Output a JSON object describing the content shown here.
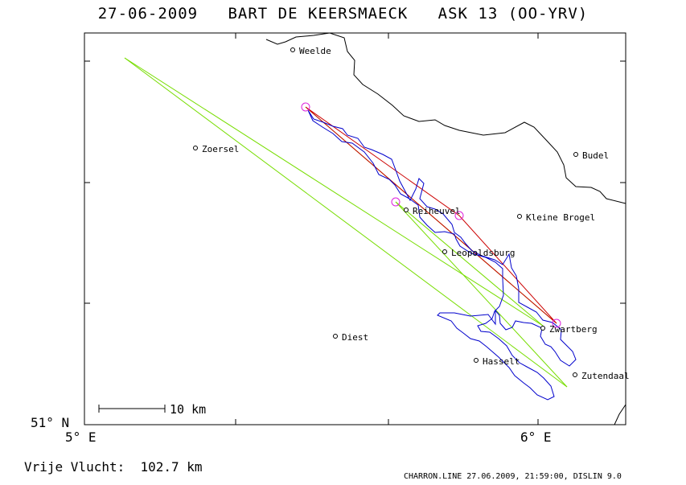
{
  "title": "27-06-2009   BART DE KEERSMAECK   ASK 13 (OO-YRV)",
  "axes": {
    "lat_label": "51° N",
    "lon_labels": [
      "5° E",
      "6° E"
    ]
  },
  "scale_bar": {
    "label": "10 km"
  },
  "distance_label": "Vrije Vlucht:  102.7 km",
  "footer": "CHARRON.LINE 27.06.2009, 21:59:00, DISLIN 9.0",
  "colors": {
    "frame": "#000000",
    "border": "#000000",
    "track": "#0000cc",
    "task": "#cc0000",
    "leg": "#77dd00",
    "turnpoint": "#dd22dd"
  },
  "places": [
    {
      "name": "Weelde",
      "lon": 4.97,
      "lat": 51.42
    },
    {
      "name": "Zoersel",
      "lon": 4.71,
      "lat": 51.27
    },
    {
      "name": "Budel",
      "lon": 5.56,
      "lat": 51.27
    },
    {
      "name": "Reiheuvel",
      "lon": 5.19,
      "lat": 51.17
    },
    {
      "name": "Kleine Brogel",
      "lon": 5.45,
      "lat": 51.17
    },
    {
      "name": "Leopoldsburg",
      "lon": 5.25,
      "lat": 51.12
    },
    {
      "name": "Diest",
      "lon": 5.05,
      "lat": 50.98
    },
    {
      "name": "Zwartberg",
      "lon": 5.5,
      "lat": 50.99
    },
    {
      "name": "Hasselt",
      "lon": 5.33,
      "lat": 50.93
    },
    {
      "name": "Zutendaal",
      "lon": 5.57,
      "lat": 50.93
    }
  ]
}
